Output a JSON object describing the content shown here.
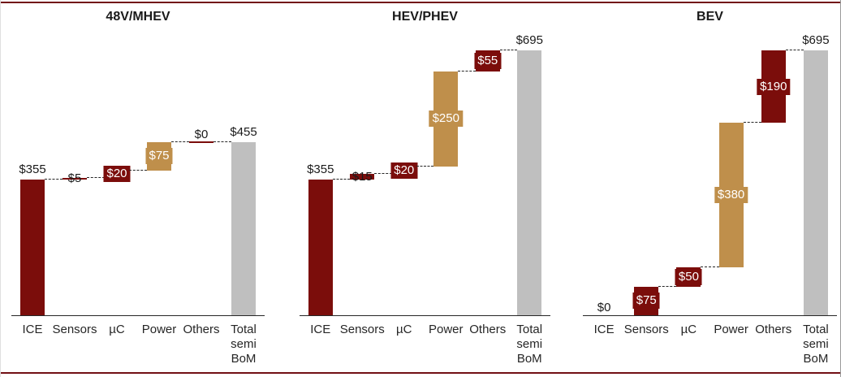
{
  "colors": {
    "maroon": "#7B0D0B",
    "tan": "#BF8F4B",
    "gray": "#BFBFBF",
    "accent_rule": "#721015",
    "axis": "#262626",
    "text": "#1A1A1A",
    "label_on_bar": "#FFFFFF",
    "connector": "#262626"
  },
  "chart_data": [
    {
      "type": "bar",
      "subtype": "waterfall",
      "title": "48V/MHEV",
      "categories": [
        "ICE",
        "Sensors",
        "µC",
        "Power",
        "Others",
        [
          "Total",
          "semi",
          "BoM"
        ]
      ],
      "ylim": [
        0,
        695
      ],
      "grid": false,
      "legend": false,
      "bars": [
        {
          "category": "ICE",
          "start": 0,
          "value": 355,
          "color": "maroon",
          "label": "$355",
          "label_style": "outside-top"
        },
        {
          "category": "Sensors",
          "start": 355,
          "value": 5,
          "color": "maroon",
          "label": "$5",
          "label_style": "overlap"
        },
        {
          "category": "µC",
          "start": 360,
          "value": 20,
          "color": "maroon",
          "label": "$20",
          "label_style": "badge"
        },
        {
          "category": "Power",
          "start": 380,
          "value": 75,
          "color": "tan",
          "label": "$75",
          "label_style": "badge"
        },
        {
          "category": "Others",
          "start": 455,
          "value": 0,
          "color": "maroon",
          "label": "$0",
          "label_style": "above-line"
        },
        {
          "category": "Total semi BoM",
          "start": 0,
          "value": 455,
          "color": "gray",
          "label": "$455",
          "label_style": "outside-top",
          "is_total": true
        }
      ]
    },
    {
      "type": "bar",
      "subtype": "waterfall",
      "title": "HEV/PHEV",
      "categories": [
        "ICE",
        "Sensors",
        "µC",
        "Power",
        "Others",
        [
          "Total",
          "semi",
          "BoM"
        ]
      ],
      "ylim": [
        0,
        695
      ],
      "grid": false,
      "legend": false,
      "bars": [
        {
          "category": "ICE",
          "start": 0,
          "value": 355,
          "color": "maroon",
          "label": "$355",
          "label_style": "outside-top"
        },
        {
          "category": "Sensors",
          "start": 355,
          "value": 15,
          "color": "maroon",
          "label": "$15",
          "label_style": "overlap"
        },
        {
          "category": "µC",
          "start": 370,
          "value": 20,
          "color": "maroon",
          "label": "$20",
          "label_style": "badge"
        },
        {
          "category": "Power",
          "start": 390,
          "value": 250,
          "color": "tan",
          "label": "$250",
          "label_style": "badge"
        },
        {
          "category": "Others",
          "start": 640,
          "value": 55,
          "color": "maroon",
          "label": "$55",
          "label_style": "badge"
        },
        {
          "category": "Total semi BoM",
          "start": 0,
          "value": 695,
          "color": "gray",
          "label": "$695",
          "label_style": "outside-top",
          "is_total": true
        }
      ]
    },
    {
      "type": "bar",
      "subtype": "waterfall",
      "title": "BEV",
      "categories": [
        "ICE",
        "Sensors",
        "µC",
        "Power",
        "Others",
        [
          "Total",
          "semi",
          "BoM"
        ]
      ],
      "ylim": [
        0,
        695
      ],
      "grid": false,
      "legend": false,
      "bars": [
        {
          "category": "ICE",
          "start": 0,
          "value": 0,
          "color": "maroon",
          "label": "$0",
          "label_style": "above-line"
        },
        {
          "category": "Sensors",
          "start": 0,
          "value": 75,
          "color": "maroon",
          "label": "$75",
          "label_style": "badge"
        },
        {
          "category": "µC",
          "start": 75,
          "value": 50,
          "color": "maroon",
          "label": "$50",
          "label_style": "badge"
        },
        {
          "category": "Power",
          "start": 125,
          "value": 380,
          "color": "tan",
          "label": "$380",
          "label_style": "badge"
        },
        {
          "category": "Others",
          "start": 505,
          "value": 190,
          "color": "maroon",
          "label": "$190",
          "label_style": "badge"
        },
        {
          "category": "Total semi BoM",
          "start": 0,
          "value": 695,
          "color": "gray",
          "label": "$695",
          "label_style": "outside-top",
          "is_total": true
        }
      ]
    }
  ]
}
